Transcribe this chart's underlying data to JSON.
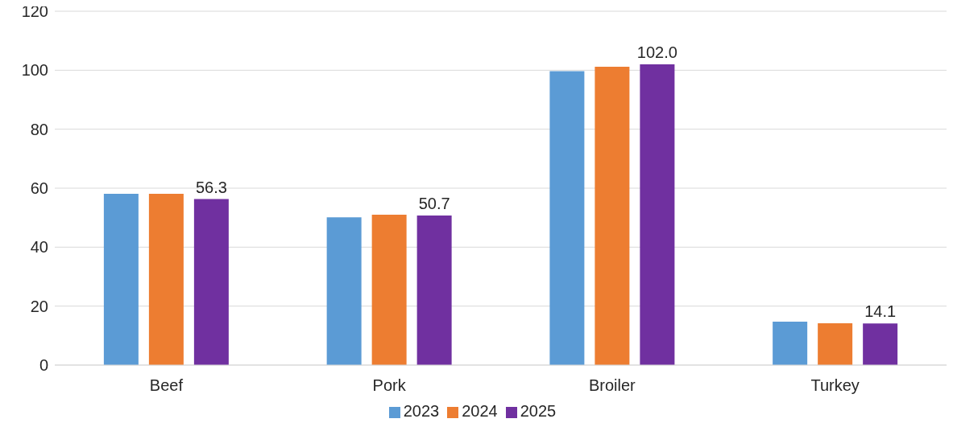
{
  "chart_data": {
    "type": "bar",
    "categories": [
      "Beef",
      "Pork",
      "Broiler",
      "Turkey"
    ],
    "series": [
      {
        "name": "2023",
        "color": "#5b9bd5",
        "values": [
          58.1,
          50.1,
          99.7,
          14.7
        ]
      },
      {
        "name": "2024",
        "color": "#ed7d31",
        "values": [
          58.1,
          51.0,
          101.2,
          14.2
        ]
      },
      {
        "name": "2025",
        "color": "#7030a0",
        "values": [
          56.3,
          50.7,
          102.0,
          14.1
        ],
        "value_labels": [
          "56.3",
          "50.7",
          "102.0",
          "14.1"
        ]
      }
    ],
    "ylim": [
      0,
      120
    ],
    "yticks": [
      0,
      20,
      40,
      60,
      80,
      100,
      120
    ],
    "grid": "y",
    "legend": "bottom"
  }
}
